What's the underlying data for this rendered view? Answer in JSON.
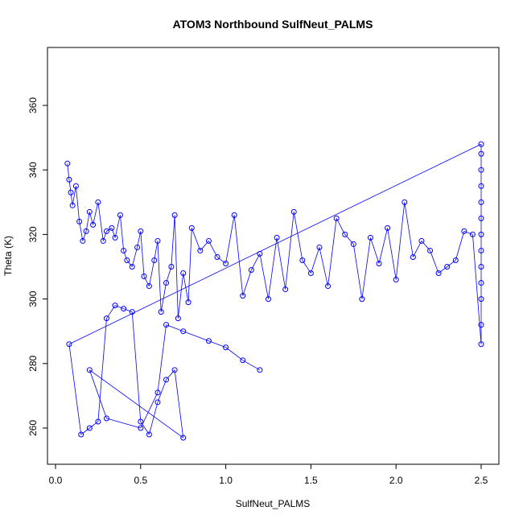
{
  "chart_data": {
    "type": "scatter",
    "title": "ATOM3 Northbound SulfNeut_PALMS",
    "xlabel": "SulfNeut_PALMS",
    "ylabel": "Theta (K)",
    "xlim": [
      -0.05,
      2.6
    ],
    "ylim": [
      250,
      375
    ],
    "x_ticks": [
      0.0,
      0.5,
      1.0,
      1.5,
      2.0,
      2.5
    ],
    "x_tick_labels": [
      "0.0",
      "0.5",
      "1.0",
      "1.5",
      "2.0",
      "2.5"
    ],
    "y_ticks": [
      260,
      280,
      300,
      320,
      340,
      360
    ],
    "y_tick_labels": [
      "260",
      "280",
      "300",
      "320",
      "340",
      "360"
    ],
    "grid": false,
    "legend": "none",
    "style": "points connected by lines (open circles)",
    "series": [
      {
        "color": "#0000ff",
        "x": [
          0.07,
          0.08,
          0.09,
          0.1,
          0.12,
          0.14,
          0.16,
          0.18,
          0.2,
          0.22,
          0.25,
          0.28,
          0.3,
          0.33,
          0.35,
          0.38,
          0.4,
          0.42,
          0.45,
          0.48,
          0.5,
          0.52,
          0.55,
          0.58,
          0.6,
          0.62,
          0.65,
          0.68,
          0.7,
          0.72,
          0.75,
          0.78,
          0.8,
          0.85,
          0.9,
          0.95,
          1.0,
          1.05,
          1.1,
          1.15,
          1.2,
          1.25,
          1.3,
          1.35,
          1.4,
          1.45,
          1.5,
          1.55,
          1.6,
          1.65,
          1.7,
          1.75,
          1.8,
          1.85,
          1.9,
          1.95,
          2.0,
          2.05,
          2.1,
          2.15,
          2.2,
          2.25,
          2.3,
          2.35,
          2.4,
          2.45,
          2.5,
          2.5,
          2.5,
          2.5,
          2.5,
          2.5,
          2.5,
          2.5,
          2.5,
          2.5,
          2.5,
          2.5,
          2.5,
          0.08,
          0.15,
          0.2,
          0.25,
          0.3,
          0.35,
          0.4,
          0.45,
          0.5,
          0.55,
          0.6,
          0.65,
          0.7,
          0.75,
          0.2,
          0.3,
          0.5,
          0.6,
          0.65,
          0.75,
          0.9,
          1.0,
          1.1,
          1.2
        ],
        "y": [
          342,
          337,
          333,
          329,
          335,
          324,
          318,
          321,
          327,
          323,
          330,
          318,
          321,
          322,
          319,
          326,
          315,
          312,
          310,
          316,
          321,
          307,
          304,
          312,
          318,
          296,
          305,
          310,
          326,
          294,
          308,
          299,
          322,
          315,
          318,
          313,
          311,
          326,
          301,
          309,
          314,
          300,
          319,
          303,
          327,
          312,
          308,
          316,
          304,
          325,
          320,
          317,
          300,
          319,
          311,
          322,
          306,
          330,
          313,
          318,
          315,
          308,
          310,
          312,
          321,
          320,
          286,
          292,
          300,
          305,
          310,
          315,
          320,
          325,
          330,
          335,
          340,
          345,
          348,
          286,
          258,
          260,
          262,
          294,
          298,
          297,
          296,
          262,
          258,
          268,
          275,
          278,
          257,
          278,
          263,
          260,
          271,
          292,
          290,
          287,
          285,
          281,
          278
        ]
      }
    ]
  }
}
